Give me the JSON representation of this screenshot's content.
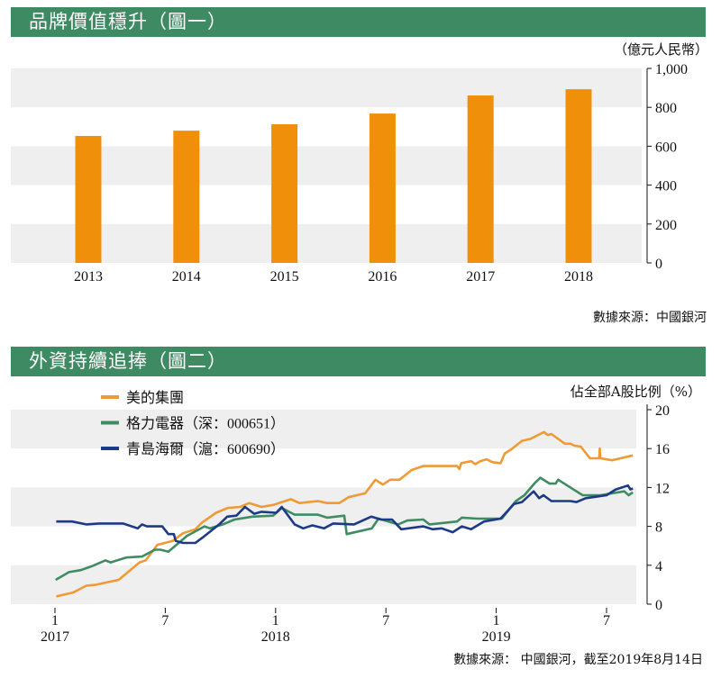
{
  "chart_data": [
    {
      "type": "bar",
      "title": "品牌價值穩升（圖一）",
      "ylabel": "（億元人民幣）",
      "categories": [
        "2013",
        "2014",
        "2015",
        "2016",
        "2017",
        "2018"
      ],
      "values": [
        653,
        680,
        713,
        768,
        861,
        893
      ],
      "ylim": [
        0,
        1000
      ],
      "yticks": [
        0,
        200,
        400,
        600,
        800,
        1000
      ],
      "ytick_labels": [
        "0",
        "200",
        "400",
        "600",
        "800",
        "1,000"
      ],
      "bar_color": "#f0900a",
      "source": "數據來源：中國銀河"
    },
    {
      "type": "line",
      "title": "外資持續追捧（圖二）",
      "ylabel": "佔全部A股比例（%）",
      "ylim": [
        0,
        20
      ],
      "yticks": [
        0,
        4,
        8,
        12,
        16,
        20
      ],
      "ytick_labels": [
        "0",
        "4",
        "8",
        "12",
        "16",
        "20"
      ],
      "xticks": [
        {
          "date": "2017-01-01",
          "label": "1",
          "year": "2017"
        },
        {
          "date": "2017-07-01",
          "label": "7",
          "year": ""
        },
        {
          "date": "2018-01-01",
          "label": "1",
          "year": "2018"
        },
        {
          "date": "2018-07-01",
          "label": "7",
          "year": ""
        },
        {
          "date": "2019-01-01",
          "label": "1",
          "year": "2019"
        },
        {
          "date": "2019-07-01",
          "label": "7",
          "year": ""
        }
      ],
      "legend_position": "top-left",
      "series": [
        {
          "name": "美的集團",
          "color": "#ee9a35",
          "points": [
            [
              "2017-01-03",
              0.8
            ],
            [
              "2017-02-01",
              1.2
            ],
            [
              "2017-02-22",
              1.9
            ],
            [
              "2017-03-08",
              2.0
            ],
            [
              "2017-04-15",
              2.5
            ],
            [
              "2017-05-19",
              4.3
            ],
            [
              "2017-05-29",
              4.5
            ],
            [
              "2017-06-18",
              6.1
            ],
            [
              "2017-07-13",
              6.5
            ],
            [
              "2017-07-30",
              7.3
            ],
            [
              "2017-08-20",
              7.7
            ],
            [
              "2017-09-01",
              8.4
            ],
            [
              "2017-09-24",
              9.4
            ],
            [
              "2017-10-13",
              9.9
            ],
            [
              "2017-11-03",
              10.0
            ],
            [
              "2017-11-18",
              10.4
            ],
            [
              "2017-12-08",
              10.0
            ],
            [
              "2017-12-27",
              10.2
            ],
            [
              "2018-01-26",
              10.8
            ],
            [
              "2018-02-10",
              10.4
            ],
            [
              "2018-03-10",
              10.6
            ],
            [
              "2018-03-25",
              10.4
            ],
            [
              "2018-04-15",
              10.4
            ],
            [
              "2018-04-30",
              11.0
            ],
            [
              "2018-05-27",
              11.4
            ],
            [
              "2018-06-14",
              12.8
            ],
            [
              "2018-06-26",
              12.3
            ],
            [
              "2018-07-08",
              12.8
            ],
            [
              "2018-07-23",
              12.8
            ],
            [
              "2018-08-13",
              13.8
            ],
            [
              "2018-09-02",
              14.2
            ],
            [
              "2018-10-27",
              14.2
            ],
            [
              "2018-11-01",
              13.9
            ],
            [
              "2018-11-04",
              14.5
            ],
            [
              "2018-11-20",
              14.7
            ],
            [
              "2018-11-27",
              14.4
            ],
            [
              "2018-12-05",
              14.7
            ],
            [
              "2018-12-15",
              14.9
            ],
            [
              "2018-12-25",
              14.6
            ],
            [
              "2019-01-08",
              14.5
            ],
            [
              "2019-01-15",
              15.5
            ],
            [
              "2019-01-25",
              15.9
            ],
            [
              "2019-02-03",
              16.3
            ],
            [
              "2019-02-13",
              16.8
            ],
            [
              "2019-02-27",
              17.0
            ],
            [
              "2019-03-19",
              17.7
            ],
            [
              "2019-03-25",
              17.4
            ],
            [
              "2019-04-01",
              17.5
            ],
            [
              "2019-04-23",
              16.5
            ],
            [
              "2019-05-02",
              16.5
            ],
            [
              "2019-05-09",
              16.3
            ],
            [
              "2019-05-19",
              16.2
            ],
            [
              "2019-06-04",
              15.0
            ],
            [
              "2019-06-19",
              15.0
            ],
            [
              "2019-06-20",
              16.0
            ],
            [
              "2019-06-21",
              15.0
            ],
            [
              "2019-07-10",
              14.8
            ],
            [
              "2019-08-14",
              15.3
            ]
          ]
        },
        {
          "name": "格力電器（深：000651）",
          "color": "#3f8c63",
          "points": [
            [
              "2017-01-02",
              2.5
            ],
            [
              "2017-01-24",
              3.3
            ],
            [
              "2017-02-13",
              3.5
            ],
            [
              "2017-03-01",
              3.9
            ],
            [
              "2017-03-23",
              4.5
            ],
            [
              "2017-04-02",
              4.3
            ],
            [
              "2017-04-27",
              4.8
            ],
            [
              "2017-05-23",
              4.9
            ],
            [
              "2017-06-14",
              5.6
            ],
            [
              "2017-06-23",
              5.6
            ],
            [
              "2017-07-06",
              5.4
            ],
            [
              "2017-08-06",
              7.0
            ],
            [
              "2017-09-05",
              8.0
            ],
            [
              "2017-09-14",
              7.8
            ],
            [
              "2017-10-05",
              8.2
            ],
            [
              "2017-10-24",
              8.7
            ],
            [
              "2017-11-23",
              9.0
            ],
            [
              "2017-12-27",
              9.1
            ],
            [
              "2018-01-11",
              9.9
            ],
            [
              "2018-02-02",
              9.2
            ],
            [
              "2018-03-10",
              9.2
            ],
            [
              "2018-03-25",
              8.9
            ],
            [
              "2018-04-23",
              9.1
            ],
            [
              "2018-04-27",
              7.2
            ],
            [
              "2018-06-08",
              7.8
            ],
            [
              "2018-06-19",
              8.8
            ],
            [
              "2018-07-21",
              8.2
            ],
            [
              "2018-08-06",
              8.6
            ],
            [
              "2018-09-02",
              8.7
            ],
            [
              "2018-09-12",
              8.2
            ],
            [
              "2018-10-27",
              8.5
            ],
            [
              "2018-11-05",
              8.9
            ],
            [
              "2018-11-30",
              8.8
            ],
            [
              "2019-01-10",
              8.8
            ],
            [
              "2019-02-03",
              10.6
            ],
            [
              "2019-02-17",
              11.2
            ],
            [
              "2019-03-03",
              12.4
            ],
            [
              "2019-03-13",
              13.0
            ],
            [
              "2019-03-28",
              12.4
            ],
            [
              "2019-04-08",
              12.4
            ],
            [
              "2019-04-12",
              12.8
            ],
            [
              "2019-05-22",
              11.2
            ],
            [
              "2019-06-21",
              11.2
            ],
            [
              "2019-07-10",
              11.4
            ],
            [
              "2019-07-30",
              11.6
            ],
            [
              "2019-08-07",
              11.2
            ],
            [
              "2019-08-14",
              11.5
            ]
          ]
        },
        {
          "name": "青島海爾（滬：600690）",
          "color": "#1c3a85",
          "points": [
            [
              "2017-01-03",
              8.5
            ],
            [
              "2017-01-29",
              8.5
            ],
            [
              "2017-02-22",
              8.2
            ],
            [
              "2017-03-13",
              8.3
            ],
            [
              "2017-04-22",
              8.3
            ],
            [
              "2017-05-16",
              7.8
            ],
            [
              "2017-05-23",
              8.2
            ],
            [
              "2017-06-01",
              8.0
            ],
            [
              "2017-06-26",
              8.0
            ],
            [
              "2017-07-06",
              7.2
            ],
            [
              "2017-07-15",
              7.2
            ],
            [
              "2017-07-18",
              6.5
            ],
            [
              "2017-07-30",
              6.3
            ],
            [
              "2017-08-20",
              6.3
            ],
            [
              "2017-09-05",
              7.0
            ],
            [
              "2017-09-29",
              8.2
            ],
            [
              "2017-10-12",
              9.0
            ],
            [
              "2017-10-27",
              9.1
            ],
            [
              "2017-11-11",
              10.0
            ],
            [
              "2017-11-26",
              9.3
            ],
            [
              "2017-12-08",
              9.5
            ],
            [
              "2018-01-02",
              9.4
            ],
            [
              "2018-01-11",
              10.0
            ],
            [
              "2018-02-02",
              8.2
            ],
            [
              "2018-02-16",
              7.8
            ],
            [
              "2018-03-01",
              8.1
            ],
            [
              "2018-03-20",
              7.8
            ],
            [
              "2018-04-05",
              8.3
            ],
            [
              "2018-05-09",
              8.2
            ],
            [
              "2018-06-07",
              9.0
            ],
            [
              "2018-06-23",
              8.7
            ],
            [
              "2018-07-11",
              8.7
            ],
            [
              "2018-07-26",
              7.7
            ],
            [
              "2018-09-02",
              8.0
            ],
            [
              "2018-09-17",
              7.7
            ],
            [
              "2018-10-02",
              7.8
            ],
            [
              "2018-10-20",
              7.4
            ],
            [
              "2018-11-05",
              8.0
            ],
            [
              "2018-11-20",
              7.7
            ],
            [
              "2018-12-11",
              8.5
            ],
            [
              "2019-01-08",
              8.8
            ],
            [
              "2019-01-30",
              10.3
            ],
            [
              "2019-02-13",
              10.5
            ],
            [
              "2019-03-02",
              11.6
            ],
            [
              "2019-03-11",
              10.9
            ],
            [
              "2019-03-18",
              11.2
            ],
            [
              "2019-04-01",
              10.6
            ],
            [
              "2019-05-02",
              10.6
            ],
            [
              "2019-05-12",
              10.5
            ],
            [
              "2019-05-27",
              10.9
            ],
            [
              "2019-07-01",
              11.2
            ],
            [
              "2019-07-16",
              11.8
            ],
            [
              "2019-08-06",
              12.2
            ],
            [
              "2019-08-10",
              11.8
            ],
            [
              "2019-08-14",
              11.9
            ]
          ]
        }
      ],
      "source": "數據來源： 中國銀河，截至2019年8月14日"
    }
  ],
  "band_color": "#efefef",
  "header_color": "#3e8a63"
}
